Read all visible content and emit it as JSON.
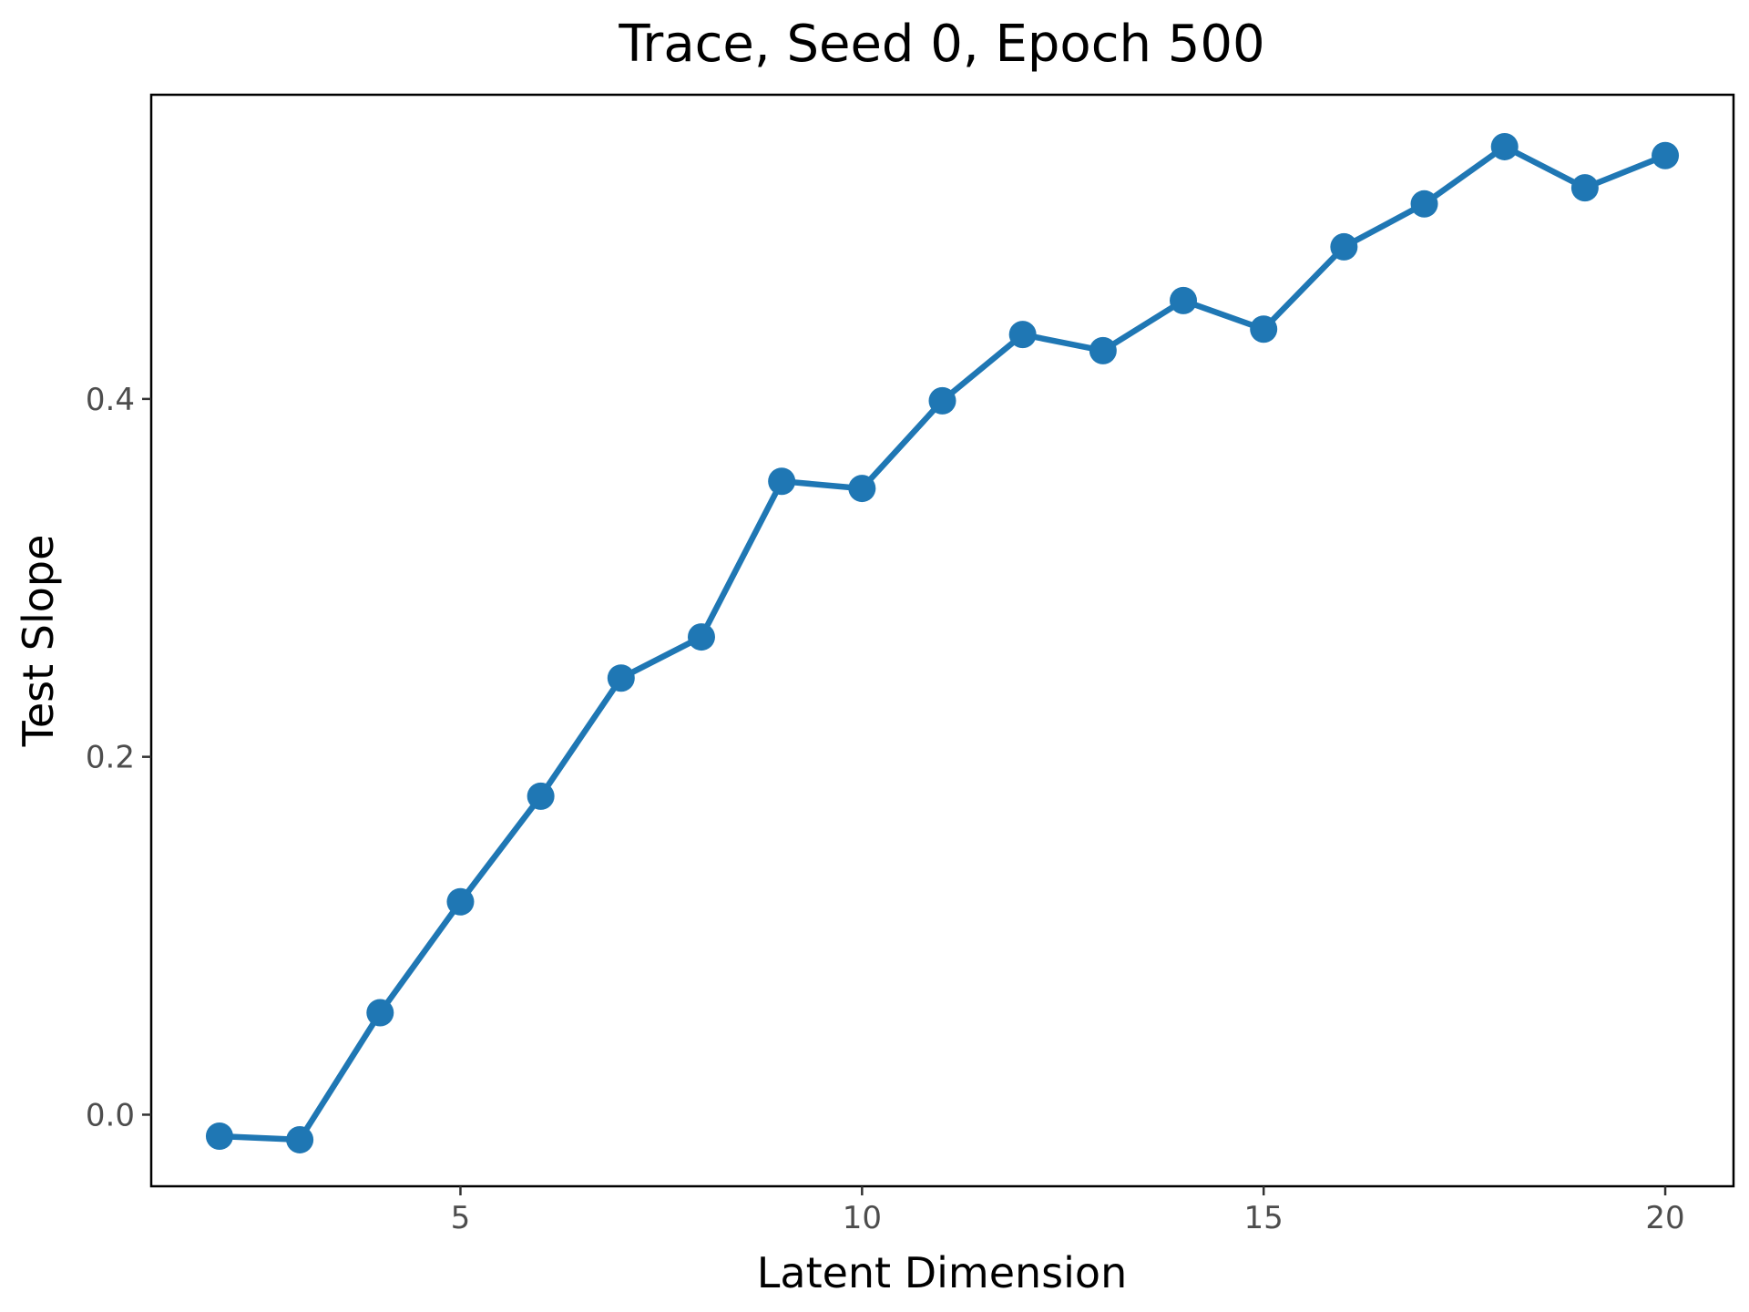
{
  "chart_data": {
    "type": "line",
    "title": "Trace, Seed 0, Epoch 500",
    "xlabel": "Latent Dimension",
    "ylabel": "Test Slope",
    "xlim": [
      1.15,
      20.85
    ],
    "ylim": [
      -0.04,
      0.57
    ],
    "xticks": [
      5,
      10,
      15,
      20
    ],
    "xtick_labels": [
      "5",
      "10",
      "15",
      "20"
    ],
    "yticks": [
      0.0,
      0.2,
      0.4
    ],
    "ytick_labels": [
      "0.0",
      "0.2",
      "0.4"
    ],
    "grid": false,
    "legend": "none",
    "series": [
      {
        "color": "#1f77b4",
        "marker": "circle",
        "x": [
          2,
          3,
          4,
          5,
          6,
          7,
          8,
          9,
          10,
          11,
          12,
          13,
          14,
          15,
          16,
          17,
          18,
          19,
          20
        ],
        "y": [
          -0.012,
          -0.014,
          0.057,
          0.119,
          0.178,
          0.244,
          0.267,
          0.354,
          0.35,
          0.399,
          0.436,
          0.427,
          0.455,
          0.439,
          0.485,
          0.509,
          0.541,
          0.518,
          0.536
        ]
      }
    ]
  }
}
